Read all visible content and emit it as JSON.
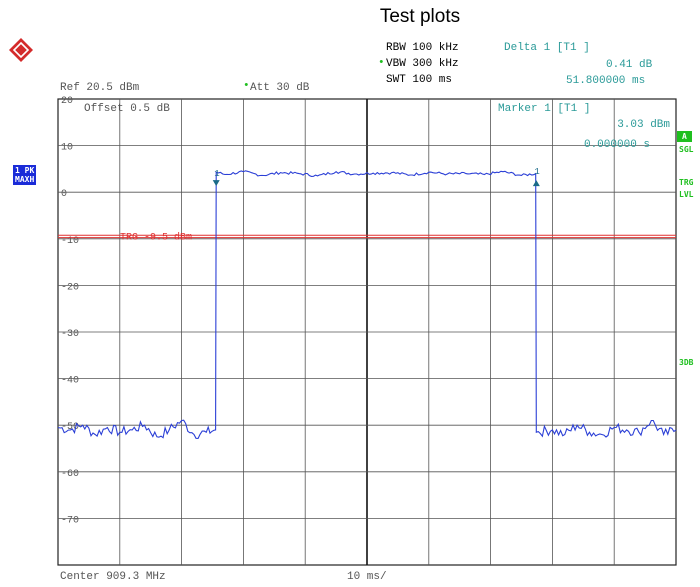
{
  "page": {
    "title": "Test plots"
  },
  "header": {
    "rbw": "RBW 100 kHz",
    "vbw": "VBW 300 kHz",
    "swt": "SWT 100 ms",
    "ref": "Ref  20.5 dBm",
    "att": "Att  30 dB",
    "delta_label": "Delta 1 [T1 ]",
    "delta_value": "0.41 dB",
    "delta_time": "51.800000 ms",
    "marker_label": "Marker 1 [T1 ]",
    "marker_value": "3.03 dBm",
    "marker_time": "0.000000 s",
    "offset_label": "Offset  0.5 dB",
    "trg_label": "TRG  -9.5 dBm"
  },
  "footer": {
    "center": "Center 909.3 MHz",
    "span": "10 ms/"
  },
  "side": {
    "badge_top": "1 PK",
    "badge_bottom": "MAXH",
    "a_badge": "A",
    "sgl": "SGL",
    "trg": "TRG",
    "lvl": "LVL",
    "db3": "3DB"
  },
  "colors": {
    "trace": "#2b3fd6",
    "trigger": "#e03030",
    "marker": "#1a6a88",
    "grid": "#555555",
    "text_teal": "#2a9a98",
    "text_green": "#1fbf1f"
  },
  "chart_data": {
    "type": "line",
    "title": "Test plots",
    "ylabel": "",
    "xlabel": "",
    "y_ticks": [
      20,
      10,
      0,
      -10,
      -20,
      -30,
      -40,
      -50,
      -60,
      -70
    ],
    "ylim": [
      -80,
      20
    ],
    "x_unit": "ms",
    "xlim": [
      0,
      100
    ],
    "trigger_level": -9.5,
    "series": [
      {
        "x": [
          0,
          2,
          4,
          6,
          8,
          10,
          12,
          14,
          16,
          18,
          20,
          22,
          24,
          25.5,
          25.6,
          27,
          30,
          33,
          36,
          39,
          42,
          45,
          48,
          51,
          54,
          57,
          60,
          63,
          66,
          69,
          72,
          75,
          77.3,
          77.4,
          80,
          82,
          84,
          86,
          88,
          90,
          92,
          94,
          96,
          98,
          100
        ],
        "values": [
          -50.5,
          -51,
          -50,
          -52,
          -50.5,
          -51.5,
          -51,
          -50,
          -52.5,
          -51,
          -49,
          -52,
          -51.5,
          -51,
          4.3,
          3.8,
          4.4,
          3.6,
          4.2,
          4.0,
          3.5,
          4.4,
          3.9,
          4.1,
          4.2,
          3.7,
          4.3,
          3.9,
          4.0,
          3.8,
          4.4,
          3.6,
          4.0,
          -51.5,
          -51,
          -52,
          -50,
          -51.5,
          -52,
          -50.5,
          -51,
          -51.5,
          -49,
          -52,
          -51
        ]
      }
    ],
    "markers": [
      {
        "name": "1",
        "x": 25.6,
        "y": 3.03
      },
      {
        "name": "1",
        "x": 77.4,
        "y": 3.44
      }
    ]
  }
}
